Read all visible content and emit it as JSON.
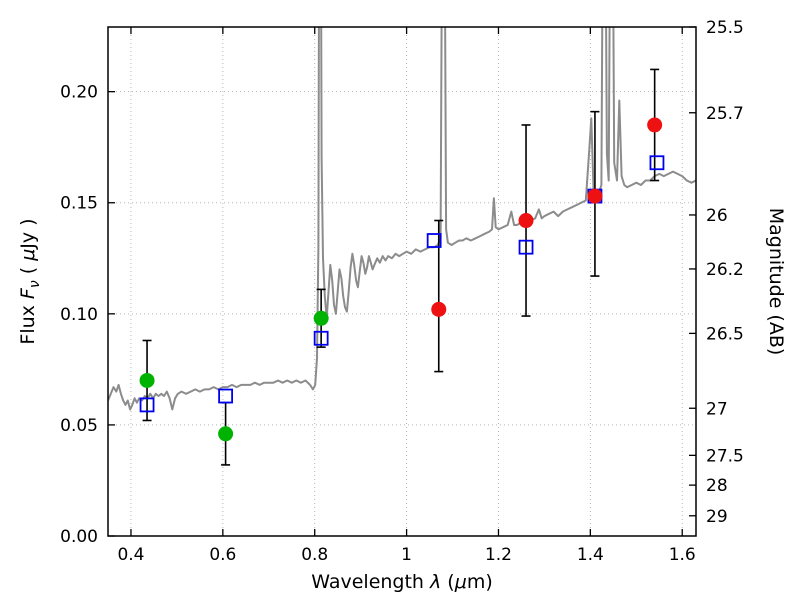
{
  "chart_data": {
    "type": "line+scatter",
    "title": "",
    "xlabel": "Wavelength λ (μm)",
    "ylabel": "Flux Fν ( μJy )",
    "ylabel_right": "Magnitude (AB)",
    "xlabel_parts": [
      {
        "t": "Wavelength  ",
        "style": "n"
      },
      {
        "t": "λ",
        "style": "i"
      },
      {
        "t": " (",
        "style": "n"
      },
      {
        "t": "μ",
        "style": "i"
      },
      {
        "t": "m)",
        "style": "n"
      }
    ],
    "ylabel_parts": [
      {
        "t": "Flux  ",
        "style": "n"
      },
      {
        "t": "F",
        "style": "i"
      },
      {
        "t": "ν",
        "style": "s"
      },
      {
        "t": "  ( ",
        "style": "n"
      },
      {
        "t": "μ",
        "style": "i"
      },
      {
        "t": "Jy )",
        "style": "n"
      }
    ],
    "ylabel_right_parts": [
      {
        "t": "Magnitude (AB)",
        "style": "n"
      }
    ],
    "xlim": [
      0.35,
      1.63
    ],
    "ylim": [
      0.0,
      0.2291
    ],
    "grid": true,
    "legend": "none",
    "xticks": [
      {
        "v": 0.4,
        "label": "0.4"
      },
      {
        "v": 0.6,
        "label": "0.6"
      },
      {
        "v": 0.8,
        "label": "0.8"
      },
      {
        "v": 1.0,
        "label": "1"
      },
      {
        "v": 1.2,
        "label": "1.2"
      },
      {
        "v": 1.4,
        "label": "1.4"
      },
      {
        "v": 1.6,
        "label": "1.6"
      }
    ],
    "yticks_left": [
      {
        "v": 0.0,
        "label": "0.00"
      },
      {
        "v": 0.05,
        "label": "0.05"
      },
      {
        "v": 0.1,
        "label": "0.10"
      },
      {
        "v": 0.15,
        "label": "0.15"
      },
      {
        "v": 0.2,
        "label": "0.20"
      }
    ],
    "yticks_right": [
      {
        "v": 0.2291,
        "label": "25.5"
      },
      {
        "v": 0.1905,
        "label": "25.7"
      },
      {
        "v": 0.1445,
        "label": "26"
      },
      {
        "v": 0.1202,
        "label": "26.2"
      },
      {
        "v": 0.0912,
        "label": "26.5"
      },
      {
        "v": 0.0575,
        "label": "27"
      },
      {
        "v": 0.0363,
        "label": "27.5"
      },
      {
        "v": 0.0229,
        "label": "28"
      },
      {
        "v": 0.0091,
        "label": "29"
      }
    ],
    "errorbar_color": "#000000",
    "spectrum": {
      "name": "model spectrum",
      "color": "#8c8c8c",
      "width": 2,
      "points": [
        [
          0.35,
          0.061
        ],
        [
          0.356,
          0.064
        ],
        [
          0.362,
          0.067
        ],
        [
          0.368,
          0.065
        ],
        [
          0.373,
          0.068
        ],
        [
          0.378,
          0.064
        ],
        [
          0.383,
          0.061
        ],
        [
          0.388,
          0.059
        ],
        [
          0.393,
          0.061
        ],
        [
          0.398,
          0.057
        ],
        [
          0.403,
          0.059
        ],
        [
          0.408,
          0.062
        ],
        [
          0.413,
          0.06
        ],
        [
          0.418,
          0.062
        ],
        [
          0.424,
          0.061
        ],
        [
          0.43,
          0.063
        ],
        [
          0.436,
          0.062
        ],
        [
          0.442,
          0.064
        ],
        [
          0.448,
          0.062
        ],
        [
          0.454,
          0.064
        ],
        [
          0.46,
          0.063
        ],
        [
          0.466,
          0.064
        ],
        [
          0.472,
          0.063
        ],
        [
          0.478,
          0.065
        ],
        [
          0.484,
          0.062
        ],
        [
          0.49,
          0.057
        ],
        [
          0.496,
          0.062
        ],
        [
          0.502,
          0.064
        ],
        [
          0.51,
          0.065
        ],
        [
          0.52,
          0.064
        ],
        [
          0.53,
          0.065
        ],
        [
          0.54,
          0.066
        ],
        [
          0.55,
          0.065
        ],
        [
          0.56,
          0.066
        ],
        [
          0.57,
          0.066
        ],
        [
          0.58,
          0.067
        ],
        [
          0.59,
          0.066
        ],
        [
          0.6,
          0.067
        ],
        [
          0.61,
          0.067
        ],
        [
          0.62,
          0.068
        ],
        [
          0.63,
          0.067
        ],
        [
          0.64,
          0.068
        ],
        [
          0.65,
          0.068
        ],
        [
          0.66,
          0.068
        ],
        [
          0.67,
          0.069
        ],
        [
          0.68,
          0.068
        ],
        [
          0.69,
          0.069
        ],
        [
          0.7,
          0.069
        ],
        [
          0.71,
          0.069
        ],
        [
          0.72,
          0.07
        ],
        [
          0.73,
          0.069
        ],
        [
          0.74,
          0.07
        ],
        [
          0.75,
          0.069
        ],
        [
          0.76,
          0.07
        ],
        [
          0.77,
          0.069
        ],
        [
          0.78,
          0.07
        ],
        [
          0.79,
          0.068
        ],
        [
          0.796,
          0.066
        ],
        [
          0.801,
          0.068
        ],
        [
          0.805,
          0.08
        ],
        [
          0.808,
          0.13
        ],
        [
          0.81,
          0.31
        ],
        [
          0.813,
          0.31
        ],
        [
          0.815,
          0.17
        ],
        [
          0.818,
          0.125
        ],
        [
          0.822,
          0.108
        ],
        [
          0.826,
          0.098
        ],
        [
          0.83,
          0.11
        ],
        [
          0.834,
          0.122
        ],
        [
          0.838,
          0.115
        ],
        [
          0.842,
          0.104
        ],
        [
          0.846,
          0.1
        ],
        [
          0.85,
          0.11
        ],
        [
          0.854,
          0.12
        ],
        [
          0.858,
          0.116
        ],
        [
          0.862,
          0.108
        ],
        [
          0.866,
          0.103
        ],
        [
          0.87,
          0.101
        ],
        [
          0.874,
          0.11
        ],
        [
          0.878,
          0.121
        ],
        [
          0.882,
          0.127
        ],
        [
          0.886,
          0.122
        ],
        [
          0.89,
          0.115
        ],
        [
          0.894,
          0.112
        ],
        [
          0.898,
          0.119
        ],
        [
          0.902,
          0.126
        ],
        [
          0.906,
          0.123
        ],
        [
          0.91,
          0.118
        ],
        [
          0.914,
          0.121
        ],
        [
          0.918,
          0.126
        ],
        [
          0.922,
          0.123
        ],
        [
          0.926,
          0.12
        ],
        [
          0.93,
          0.122
        ],
        [
          0.936,
          0.125
        ],
        [
          0.942,
          0.123
        ],
        [
          0.948,
          0.126
        ],
        [
          0.954,
          0.124
        ],
        [
          0.96,
          0.126
        ],
        [
          0.968,
          0.125
        ],
        [
          0.976,
          0.127
        ],
        [
          0.984,
          0.126
        ],
        [
          0.992,
          0.127
        ],
        [
          1.0,
          0.128
        ],
        [
          1.01,
          0.127
        ],
        [
          1.02,
          0.129
        ],
        [
          1.03,
          0.128
        ],
        [
          1.04,
          0.129
        ],
        [
          1.05,
          0.13
        ],
        [
          1.06,
          0.13
        ],
        [
          1.068,
          0.131
        ],
        [
          1.074,
          0.134
        ],
        [
          1.078,
          0.31
        ],
        [
          1.082,
          0.31
        ],
        [
          1.086,
          0.138
        ],
        [
          1.09,
          0.132
        ],
        [
          1.098,
          0.131
        ],
        [
          1.106,
          0.132
        ],
        [
          1.114,
          0.133
        ],
        [
          1.122,
          0.133
        ],
        [
          1.13,
          0.134
        ],
        [
          1.14,
          0.133
        ],
        [
          1.15,
          0.134
        ],
        [
          1.16,
          0.135
        ],
        [
          1.17,
          0.136
        ],
        [
          1.18,
          0.137
        ],
        [
          1.186,
          0.138
        ],
        [
          1.19,
          0.152
        ],
        [
          1.194,
          0.139
        ],
        [
          1.2,
          0.138
        ],
        [
          1.21,
          0.139
        ],
        [
          1.22,
          0.14
        ],
        [
          1.228,
          0.146
        ],
        [
          1.234,
          0.14
        ],
        [
          1.24,
          0.14
        ],
        [
          1.25,
          0.141
        ],
        [
          1.26,
          0.142
        ],
        [
          1.27,
          0.142
        ],
        [
          1.28,
          0.143
        ],
        [
          1.288,
          0.147
        ],
        [
          1.294,
          0.143
        ],
        [
          1.3,
          0.144
        ],
        [
          1.31,
          0.145
        ],
        [
          1.32,
          0.146
        ],
        [
          1.33,
          0.144
        ],
        [
          1.34,
          0.146
        ],
        [
          1.35,
          0.147
        ],
        [
          1.36,
          0.148
        ],
        [
          1.37,
          0.149
        ],
        [
          1.38,
          0.15
        ],
        [
          1.39,
          0.151
        ],
        [
          1.397,
          0.172
        ],
        [
          1.402,
          0.188
        ],
        [
          1.407,
          0.155
        ],
        [
          1.412,
          0.153
        ],
        [
          1.418,
          0.154
        ],
        [
          1.424,
          0.158
        ],
        [
          1.428,
          0.31
        ],
        [
          1.432,
          0.31
        ],
        [
          1.436,
          0.172
        ],
        [
          1.44,
          0.16
        ],
        [
          1.444,
          0.31
        ],
        [
          1.448,
          0.31
        ],
        [
          1.452,
          0.168
        ],
        [
          1.458,
          0.16
        ],
        [
          1.463,
          0.196
        ],
        [
          1.468,
          0.162
        ],
        [
          1.474,
          0.158
        ],
        [
          1.48,
          0.157
        ],
        [
          1.49,
          0.158
        ],
        [
          1.5,
          0.159
        ],
        [
          1.51,
          0.158
        ],
        [
          1.52,
          0.16
        ],
        [
          1.53,
          0.16
        ],
        [
          1.54,
          0.162
        ],
        [
          1.55,
          0.163
        ],
        [
          1.56,
          0.162
        ],
        [
          1.57,
          0.163
        ],
        [
          1.58,
          0.164
        ],
        [
          1.59,
          0.163
        ],
        [
          1.6,
          0.162
        ],
        [
          1.61,
          0.16
        ],
        [
          1.62,
          0.159
        ],
        [
          1.63,
          0.16
        ],
        [
          1.64,
          0.158
        ],
        [
          1.65,
          0.158
        ]
      ]
    },
    "model_photometry": {
      "name": "model photometry",
      "marker": "open-square",
      "color": "#0000f0",
      "size": 13,
      "points": [
        [
          0.435,
          0.059
        ],
        [
          0.606,
          0.063
        ],
        [
          0.814,
          0.089
        ],
        [
          1.06,
          0.133
        ],
        [
          1.26,
          0.13
        ],
        [
          1.41,
          0.153
        ],
        [
          1.545,
          0.168
        ]
      ]
    },
    "observed_series": [
      {
        "name": "observed-green",
        "marker": "circle",
        "color": "#00b300",
        "points": [
          [
            0.435,
            0.07,
            0.018,
            0.018
          ],
          [
            0.606,
            0.046,
            0.014,
            0.014
          ],
          [
            0.814,
            0.098,
            0.013,
            0.013
          ]
        ]
      },
      {
        "name": "observed-red",
        "marker": "circle",
        "color": "#ee1111",
        "points": [
          [
            1.07,
            0.102,
            0.028,
            0.04
          ],
          [
            1.26,
            0.142,
            0.043,
            0.043
          ],
          [
            1.41,
            0.153,
            0.036,
            0.038
          ],
          [
            1.54,
            0.185,
            0.025,
            0.025
          ]
        ]
      }
    ]
  }
}
